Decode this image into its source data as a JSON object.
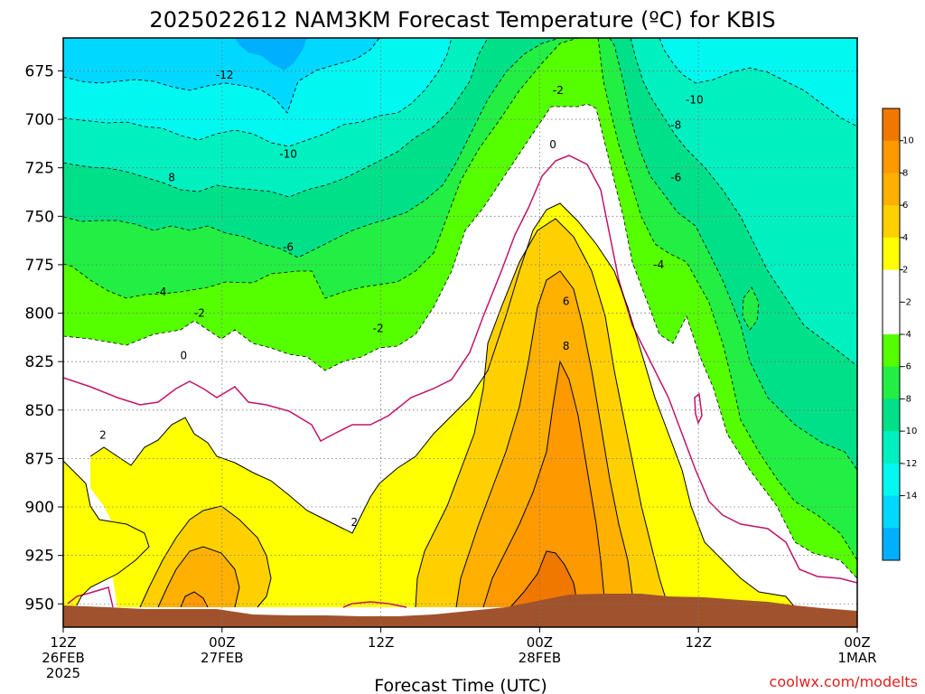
{
  "chart_data": {
    "type": "heatmap",
    "title": "2025022612 NAM3KM Forecast Temperature (ºC) for KBIS",
    "xlabel": "Forecast Time (UTC)",
    "ylabel": "",
    "y_ticks": [
      "675",
      "700",
      "725",
      "750",
      "775",
      "800",
      "825",
      "850",
      "875",
      "900",
      "925",
      "950"
    ],
    "x_ticks": [
      {
        "lines": [
          "12Z",
          "26FEB",
          "2025"
        ]
      },
      {
        "lines": [
          "00Z",
          "27FEB"
        ]
      },
      {
        "lines": [
          "12Z"
        ]
      },
      {
        "lines": [
          "00Z",
          "28FEB"
        ]
      },
      {
        "lines": [
          "12Z"
        ]
      },
      {
        "lines": [
          "00Z",
          "1MAR"
        ]
      }
    ],
    "y_axis": "pressure (hPa), decreasing upward",
    "ylim": [
      962,
      658
    ],
    "x_range_hours": [
      0,
      60
    ],
    "grid": true,
    "colorbar": {
      "placement": "right",
      "labels": [
        "10",
        "8",
        "6",
        "4",
        "2",
        "-2",
        "-4",
        "-6",
        "-8",
        "-10",
        "-12",
        "-14"
      ],
      "colors": [
        "#f07800",
        "#ff9900",
        "#ffb000",
        "#ffd000",
        "#ffff00",
        "#ffffff",
        "#ffffff",
        "#55ff00",
        "#22ee44",
        "#00e088",
        "#00f0c0",
        "#00f8f0",
        "#00d8ff",
        "#00b0ff"
      ]
    },
    "contour_labels": [
      {
        "text": "-12",
        "x_hours": 12.2,
        "pressure": 677
      },
      {
        "text": "-10",
        "x_hours": 17.0,
        "pressure": 718
      },
      {
        "text": "8",
        "x_hours": 8.2,
        "pressure": 730
      },
      {
        "text": "-6",
        "x_hours": 17.0,
        "pressure": 766
      },
      {
        "text": "-4",
        "x_hours": 7.4,
        "pressure": 789
      },
      {
        "text": "-2",
        "x_hours": 10.3,
        "pressure": 800
      },
      {
        "text": "0",
        "x_hours": 9.1,
        "pressure": 822
      },
      {
        "text": "2",
        "x_hours": 3.0,
        "pressure": 863
      },
      {
        "text": "-2",
        "x_hours": 23.8,
        "pressure": 808
      },
      {
        "text": "2",
        "x_hours": 22.0,
        "pressure": 908
      },
      {
        "text": "-2",
        "x_hours": 37.4,
        "pressure": 685
      },
      {
        "text": "0",
        "x_hours": 37.0,
        "pressure": 713
      },
      {
        "text": "6",
        "x_hours": 38.0,
        "pressure": 794
      },
      {
        "text": "8",
        "x_hours": 38.0,
        "pressure": 817
      },
      {
        "text": "-10",
        "x_hours": 47.7,
        "pressure": 690
      },
      {
        "text": "-8",
        "x_hours": 46.3,
        "pressure": 703
      },
      {
        "text": "-6",
        "x_hours": 46.3,
        "pressure": 730
      },
      {
        "text": "-4",
        "x_hours": 45.0,
        "pressure": 775
      }
    ],
    "regions": {
      "note": "temperature bands drawn as filled contours; topography (terrain) at bottom",
      "bands": [
        {
          "name": "<= -14",
          "color": "#00b0ff"
        },
        {
          "name": "-14 to -12",
          "color": "#00d8ff"
        },
        {
          "name": "-12 to -10",
          "color": "#00f8f0"
        },
        {
          "name": "-10 to -8",
          "color": "#00f0c0"
        },
        {
          "name": "-8 to -6",
          "color": "#00e088"
        },
        {
          "name": "-6 to -4",
          "color": "#22ee44"
        },
        {
          "name": "-4 to -2",
          "color": "#55ff00"
        },
        {
          "name": "-2 to 2",
          "color": "#ffffff"
        },
        {
          "name": "2 to 4",
          "color": "#ffff00"
        },
        {
          "name": "4 to 6",
          "color": "#ffd000"
        },
        {
          "name": "6 to 8",
          "color": "#ffb000"
        },
        {
          "name": "8 to 10",
          "color": "#ff9900"
        },
        {
          "name": "> 10",
          "color": "#f07800"
        }
      ],
      "terrain_color": "#a0522d"
    }
  },
  "credit": "coolwx.com/modelts"
}
